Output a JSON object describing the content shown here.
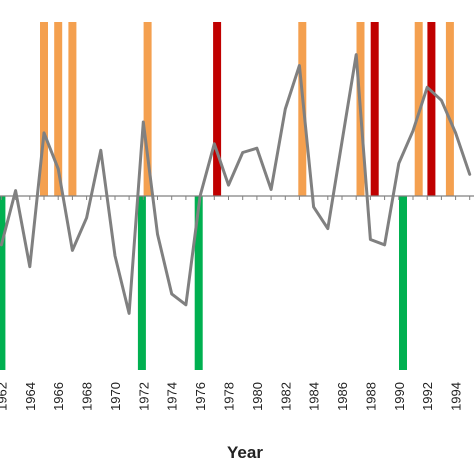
{
  "chart_data": {
    "type": "line",
    "xlabel": "Year",
    "ylabel": "",
    "title": "",
    "x_ticks": [
      "1962",
      "1964",
      "1966",
      "1968",
      "1970",
      "1972",
      "1974",
      "1976",
      "1978",
      "1980",
      "1982",
      "1984",
      "1986",
      "1988",
      "1990",
      "1992",
      "1994"
    ],
    "xlim": [
      1961.9,
      1995.3
    ],
    "ylim": [
      -1.6,
      1.6
    ],
    "grid": false,
    "line": {
      "x": [
        1962,
        1963,
        1964,
        1965,
        1966,
        1967,
        1968,
        1969,
        1970,
        1971,
        1972,
        1973,
        1974,
        1975,
        1976,
        1977,
        1978,
        1979,
        1980,
        1981,
        1982,
        1983,
        1984,
        1985,
        1986,
        1987,
        1988,
        1989,
        1990,
        1991,
        1992,
        1993,
        1994,
        1995
      ],
      "y": [
        -0.45,
        0.05,
        -0.65,
        0.58,
        0.25,
        -0.5,
        -0.2,
        0.42,
        -0.55,
        -1.08,
        0.68,
        -0.35,
        -0.9,
        -1.0,
        0.0,
        0.48,
        0.1,
        0.4,
        0.44,
        0.06,
        0.8,
        1.2,
        -0.1,
        -0.3,
        0.5,
        1.3,
        -0.4,
        -0.45,
        0.3,
        0.6,
        1.0,
        0.88,
        0.58,
        0.2
      ],
      "color": "#808080"
    },
    "event_bars": [
      {
        "x": 1962,
        "type": "negative",
        "value": -1.6
      },
      {
        "x": 1965,
        "type": "positive-moderate",
        "value": 1.6
      },
      {
        "x": 1966,
        "type": "positive-moderate",
        "value": 1.6
      },
      {
        "x": 1967,
        "type": "positive-moderate",
        "value": 1.6
      },
      {
        "x": 1971.9,
        "type": "negative",
        "value": -1.6
      },
      {
        "x": 1972.3,
        "type": "positive-moderate",
        "value": 1.6
      },
      {
        "x": 1975.9,
        "type": "negative",
        "value": -1.6
      },
      {
        "x": 1977.2,
        "type": "positive-strong",
        "value": 1.6
      },
      {
        "x": 1983.2,
        "type": "positive-moderate",
        "value": 1.6
      },
      {
        "x": 1987.3,
        "type": "positive-moderate",
        "value": 1.6
      },
      {
        "x": 1988.3,
        "type": "positive-strong",
        "value": 1.6
      },
      {
        "x": 1990.3,
        "type": "negative",
        "value": -1.6
      },
      {
        "x": 1991.4,
        "type": "positive-moderate",
        "value": 1.6
      },
      {
        "x": 1992.3,
        "type": "positive-strong",
        "value": 1.6
      },
      {
        "x": 1993.6,
        "type": "positive-moderate",
        "value": 1.6
      }
    ],
    "colors": {
      "positive-moderate": "#f4a04f",
      "positive-strong": "#c00000",
      "negative": "#00b050",
      "axis": "#808080"
    }
  }
}
